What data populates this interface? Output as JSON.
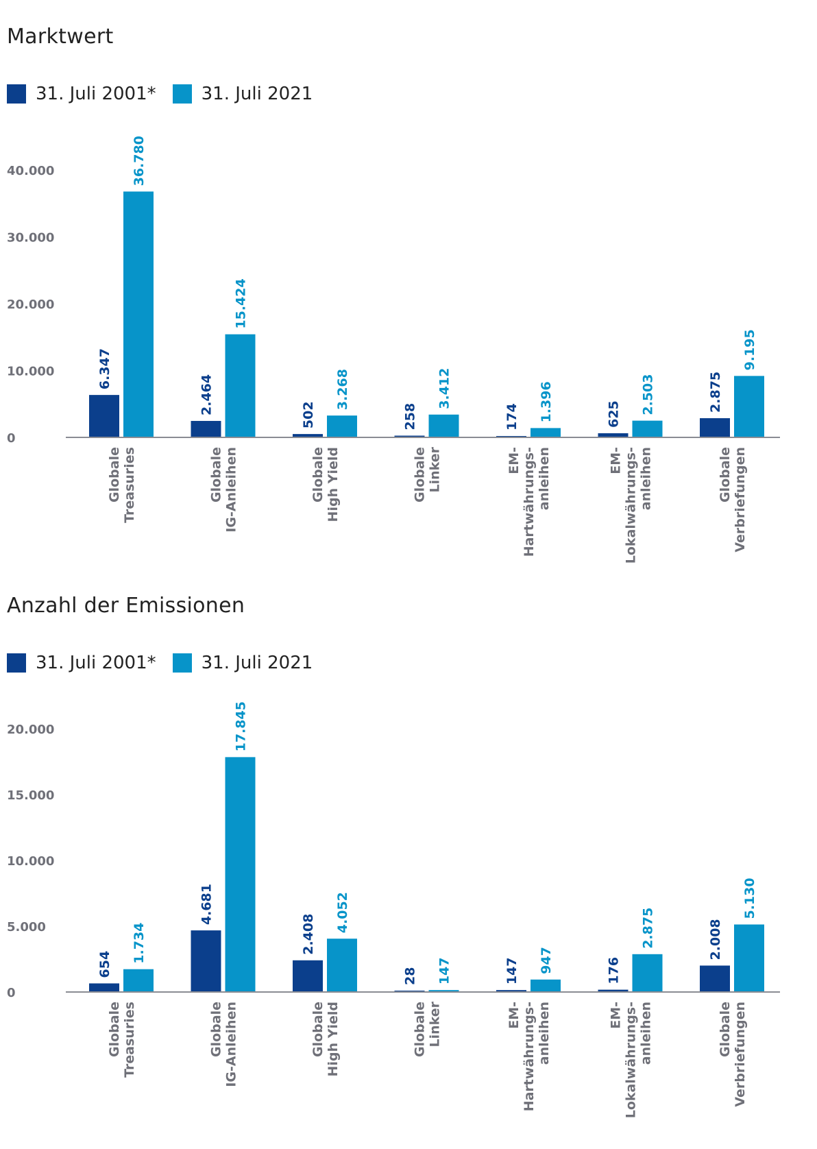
{
  "colors": {
    "series_2001": "#0b3f8c",
    "series_2021": "#0794c9",
    "axis": "#8a8c93",
    "tick": "#6f7078"
  },
  "chart_data": [
    {
      "type": "bar",
      "title": "Marktwert",
      "xlabel": "",
      "ylabel": "",
      "ylim": [
        0,
        40000
      ],
      "yticks": [
        "0",
        "10.000",
        "20.000",
        "30.000",
        "40.000"
      ],
      "ytick_values": [
        0,
        10000,
        20000,
        30000,
        40000
      ],
      "legend": [
        "31. Juli 2001*",
        "31. Juli 2021"
      ],
      "categories": [
        [
          "Globale",
          "Treasuries"
        ],
        [
          "Globale",
          "IG-Anleihen"
        ],
        [
          "Globale",
          "High Yield"
        ],
        [
          "Globale",
          "Linker"
        ],
        [
          "EM-",
          "Hartwährungs-",
          "anleihen"
        ],
        [
          "EM-",
          "Lokalwährungs-",
          "anleihen"
        ],
        [
          "Globale",
          "Verbriefungen"
        ]
      ],
      "series": [
        {
          "name": "31. Juli 2001*",
          "values": [
            6347,
            2464,
            502,
            258,
            174,
            625,
            2875
          ],
          "labels": [
            "6.347",
            "2.464",
            "502",
            "258",
            "174",
            "625",
            "2.875"
          ]
        },
        {
          "name": "31. Juli 2021",
          "values": [
            36780,
            15424,
            3268,
            3412,
            1396,
            2503,
            9195
          ],
          "labels": [
            "36.780",
            "15.424",
            "3.268",
            "3.412",
            "1.396",
            "2.503",
            "9.195"
          ]
        }
      ]
    },
    {
      "type": "bar",
      "title": "Anzahl der Emissionen",
      "xlabel": "",
      "ylabel": "",
      "ylim": [
        0,
        20000
      ],
      "yticks": [
        "0",
        "5.000",
        "10.000",
        "15.000",
        "20.000"
      ],
      "ytick_values": [
        0,
        5000,
        10000,
        15000,
        20000
      ],
      "legend": [
        "31. Juli 2001*",
        "31. Juli 2021"
      ],
      "categories": [
        [
          "Globale",
          "Treasuries"
        ],
        [
          "Globale",
          "IG-Anleihen"
        ],
        [
          "Globale",
          "High Yield"
        ],
        [
          "Globale",
          "Linker"
        ],
        [
          "EM-",
          "Hartwährungs-",
          "anleihen"
        ],
        [
          "EM-",
          "Lokalwährungs-",
          "anleihen"
        ],
        [
          "Globale",
          "Verbriefungen"
        ]
      ],
      "series": [
        {
          "name": "31. Juli 2001*",
          "values": [
            654,
            4681,
            2408,
            28,
            147,
            176,
            2008
          ],
          "labels": [
            "654",
            "4.681",
            "2.408",
            "28",
            "147",
            "176",
            "2.008"
          ]
        },
        {
          "name": "31. Juli 2021",
          "values": [
            1734,
            17845,
            4052,
            147,
            947,
            2875,
            5130
          ],
          "labels": [
            "1.734",
            "17.845",
            "4.052",
            "147",
            "947",
            "2.875",
            "5.130"
          ]
        }
      ]
    }
  ]
}
